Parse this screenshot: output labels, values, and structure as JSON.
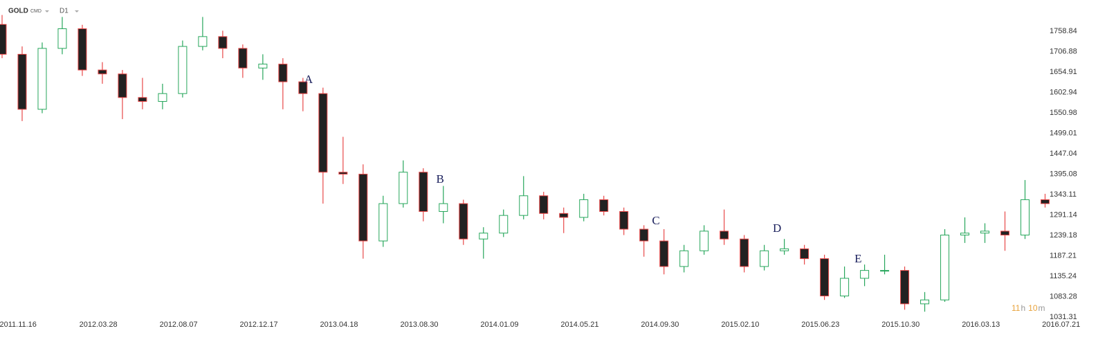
{
  "header": {
    "symbol": "GOLD",
    "market": "CMD",
    "timeframe": "D1"
  },
  "timer": [
    "11",
    "h",
    "10",
    "m"
  ],
  "chart_data": {
    "type": "candlestick",
    "xlim": [
      -0.2,
      12.8
    ],
    "xticks": [
      {
        "value": 0,
        "label": "2011.11.16"
      },
      {
        "value": 1,
        "label": "2012.03.28"
      },
      {
        "value": 2,
        "label": "2012.08.07"
      },
      {
        "value": 3,
        "label": "2012.12.17"
      },
      {
        "value": 4,
        "label": "2013.04.18"
      },
      {
        "value": 5,
        "label": "2013.08.30"
      },
      {
        "value": 6,
        "label": "2014.01.09"
      },
      {
        "value": 7,
        "label": "2014.05.21"
      },
      {
        "value": 8,
        "label": "2014.09.30"
      },
      {
        "value": 9,
        "label": "2015.02.10"
      },
      {
        "value": 10,
        "label": "2015.06.23"
      },
      {
        "value": 11,
        "label": "2015.10.30"
      },
      {
        "value": 12,
        "label": "2016.03.13"
      },
      {
        "value": 13,
        "label": "2016.07.21"
      }
    ],
    "ylim": [
      1027.8,
      1838.1
    ],
    "yticks": [
      1031.31,
      1083.28,
      1135.24,
      1187.21,
      1239.18,
      1291.14,
      1343.11,
      1395.08,
      1447.04,
      1499.01,
      1550.98,
      1602.94,
      1654.91,
      1706.88,
      1758.84
    ],
    "up_color": "#26a65b",
    "down_color": "#e84848",
    "body_color": "#222222",
    "x": [
      -0.2,
      0.05,
      0.3,
      0.55,
      0.8,
      1.05,
      1.3,
      1.55,
      1.8,
      2.05,
      2.3,
      2.55,
      2.8,
      3.05,
      3.3,
      3.55,
      3.8,
      4.05,
      4.3,
      4.55,
      4.8,
      5.05,
      5.3,
      5.55,
      5.8,
      6.05,
      6.3,
      6.55,
      6.8,
      7.05,
      7.3,
      7.55,
      7.8,
      8.05,
      8.3,
      8.55,
      8.8,
      9.05,
      9.3,
      9.55,
      9.8,
      10.05,
      10.3,
      10.55,
      10.8,
      11.05,
      11.3,
      11.55,
      11.8,
      12.05,
      12.3,
      12.55,
      12.8
    ],
    "open": [
      1776,
      1700,
      1560,
      1715,
      1765,
      1660,
      1650,
      1590,
      1580,
      1600,
      1720,
      1745,
      1715,
      1665,
      1675,
      1630,
      1600,
      1400,
      1395,
      1225,
      1320,
      1400,
      1300,
      1320,
      1230,
      1245,
      1290,
      1340,
      1295,
      1285,
      1330,
      1300,
      1255,
      1225,
      1160,
      1200,
      1250,
      1230,
      1160,
      1200,
      1205,
      1180,
      1085,
      1130,
      1150,
      1150,
      1065,
      1075,
      1240,
      1245,
      1250,
      1240,
      1330
    ],
    "high": [
      1800,
      1720,
      1730,
      1795,
      1775,
      1680,
      1660,
      1640,
      1625,
      1735,
      1795,
      1760,
      1725,
      1700,
      1690,
      1640,
      1615,
      1490,
      1420,
      1340,
      1430,
      1410,
      1365,
      1330,
      1260,
      1305,
      1390,
      1350,
      1310,
      1345,
      1340,
      1310,
      1265,
      1255,
      1215,
      1265,
      1305,
      1240,
      1215,
      1230,
      1215,
      1190,
      1160,
      1165,
      1190,
      1160,
      1095,
      1255,
      1285,
      1270,
      1300,
      1380,
      1345
    ],
    "low": [
      1690,
      1530,
      1550,
      1700,
      1645,
      1625,
      1535,
      1560,
      1560,
      1590,
      1710,
      1690,
      1640,
      1635,
      1560,
      1555,
      1320,
      1370,
      1180,
      1210,
      1310,
      1275,
      1270,
      1215,
      1180,
      1235,
      1280,
      1280,
      1245,
      1275,
      1290,
      1240,
      1185,
      1140,
      1145,
      1190,
      1215,
      1145,
      1150,
      1190,
      1165,
      1075,
      1080,
      1110,
      1140,
      1050,
      1045,
      1070,
      1220,
      1220,
      1200,
      1230,
      1310
    ],
    "close": [
      1700,
      1560,
      1715,
      1765,
      1660,
      1650,
      1590,
      1580,
      1600,
      1720,
      1745,
      1715,
      1665,
      1675,
      1630,
      1600,
      1400,
      1395,
      1225,
      1320,
      1400,
      1300,
      1320,
      1230,
      1245,
      1290,
      1340,
      1295,
      1285,
      1330,
      1300,
      1255,
      1225,
      1160,
      1200,
      1250,
      1230,
      1160,
      1200,
      1205,
      1180,
      1085,
      1130,
      1150,
      1150,
      1065,
      1075,
      1240,
      1245,
      1250,
      1240,
      1330,
      1320
    ],
    "annotations": [
      {
        "text": "A",
        "x": 3.62,
        "y": 1634
      },
      {
        "text": "B",
        "x": 5.26,
        "y": 1380
      },
      {
        "text": "C",
        "x": 7.95,
        "y": 1274
      },
      {
        "text": "D",
        "x": 9.46,
        "y": 1255
      },
      {
        "text": "E",
        "x": 10.47,
        "y": 1177
      }
    ]
  }
}
